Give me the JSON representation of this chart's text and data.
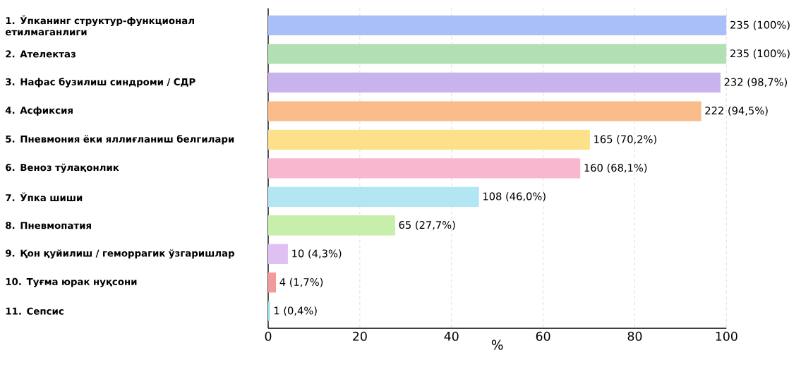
{
  "chart_data": {
    "type": "bar",
    "orientation": "horizontal",
    "xlabel": "%",
    "categories": [
      "1. Ўпканинг структур-функционал етилмаганлиги",
      "2. Ателектаз",
      "3. Нафас бузилиш синдроми / СДР",
      "4. Асфиксия",
      "5. Пневмония ёки яллиғланиш белгилари",
      "6. Веноз тўлақонлик",
      "7. Ўпка шиши",
      "8. Пневмопатия",
      "9. Қон қуйилиш / геморрагик ўзгаришлар",
      "10. Туғма юрак нуқсони",
      "11. Сепсис"
    ],
    "values": [
      100,
      100,
      98.7,
      94.5,
      70.2,
      68.1,
      46.0,
      27.7,
      4.3,
      1.7,
      0.4
    ],
    "value_labels": [
      "235 (100%)",
      "235 (100%)",
      "232 (98,7%)",
      "222 (94,5%)",
      "165 (70,2%)",
      "160 (68,1%)",
      "108 (46,0%)",
      "65 (27,7%)",
      "10 (4,3%)",
      "4 (1,7%)",
      "1 (0,4%)"
    ],
    "colors": [
      "#a9bff8",
      "#b3dfb5",
      "#c9b3ec",
      "#f9bc8a",
      "#fde08a",
      "#f9b7cf",
      "#b3e6f3",
      "#c8eeab",
      "#dfc0f3",
      "#f39a9c",
      "#9fe0ee"
    ],
    "xlim": [
      0,
      100
    ],
    "xticks": [
      0,
      20,
      40,
      60,
      80,
      100
    ],
    "grid": "x"
  }
}
